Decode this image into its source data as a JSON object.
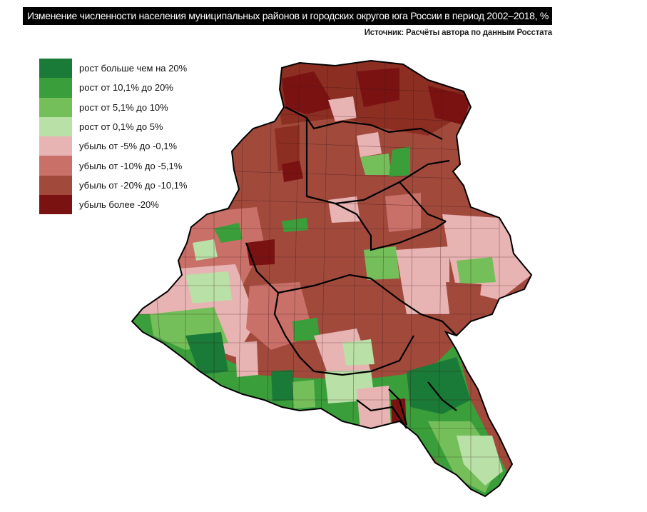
{
  "header": {
    "title": "Изменение численности населения муниципальных районов и городских округов юга России в период 2002–2018, %",
    "source": "Источник: Расчёты автора по данным Росстата"
  },
  "legend": {
    "items": [
      {
        "label": "рост больше чем на 20%",
        "color": "#1a7a37"
      },
      {
        "label": "рост от 10,1% до 20%",
        "color": "#3a9e3a"
      },
      {
        "label": "рост от 5,1% до 10%",
        "color": "#74bf5a"
      },
      {
        "label": "рост от 0,1% до 5%",
        "color": "#b9e0a6"
      },
      {
        "label": "убыль от -5% до -0,1%",
        "color": "#e8b3b3"
      },
      {
        "label": "убыль от -10% до -5,1%",
        "color": "#c97068"
      },
      {
        "label": "убыль от -20% до -10,1%",
        "color": "#a14a3c"
      },
      {
        "label": "убыль более -20%",
        "color": "#7a1212"
      }
    ]
  },
  "map": {
    "border_color": "#000000",
    "district_line_color": "#3a1a1a"
  }
}
